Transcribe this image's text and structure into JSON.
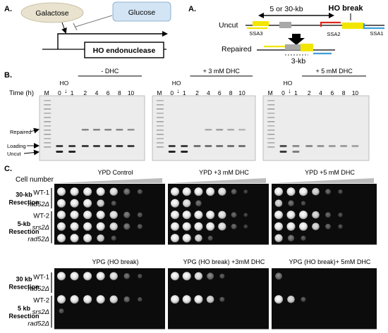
{
  "panel_a": {
    "letter": "A.",
    "galactose": "Galactose",
    "glucose": "Glucose",
    "gene": "HO endonuclease",
    "uncut": "Uncut",
    "distance": "5 or 30-kb",
    "ho_break": "HO break",
    "ssa3": "SSA3",
    "ssa2": "SSA2",
    "ssa1": "SSA1",
    "repaired": "Repaired",
    "repaired_size": "3-kb",
    "colors": {
      "yellow": "#f2e600",
      "red": "#e0241b",
      "blue": "#3e9fd8",
      "gray": "#a8a8a8",
      "galactose_fill": "#e8e2cf",
      "glucose_fill": "#d3e5f5"
    }
  },
  "panel_b": {
    "letter": "B.",
    "time_label": "Time (h)",
    "marker": "M",
    "ho": "HO",
    "arrow": "↓",
    "lanes": [
      "0",
      "1",
      "2",
      "4",
      "6",
      "8",
      "10"
    ],
    "groups": [
      {
        "title": "- DHC"
      },
      {
        "title": "+ 3 mM DHC"
      },
      {
        "title": "+ 5 mM DHC"
      }
    ],
    "band_labels": {
      "repaired": "Repaired",
      "loading": "Loading",
      "uncut": "Uncut"
    }
  },
  "panel_c": {
    "letter": "C.",
    "cell_number": "Cell number",
    "top": {
      "titles": [
        "YPD Control",
        "YPD +3 mM DHC",
        "YPD +5 mM DHC"
      ],
      "groups": [
        {
          "label": [
            "30-kb",
            "Resection"
          ],
          "rows": [
            "WT-1",
            "rad52Δ"
          ]
        },
        {
          "label": [
            "5-kb",
            "Resection"
          ],
          "rows": [
            "WT-2",
            "srs2Δ",
            "rad52Δ"
          ]
        }
      ]
    },
    "bottom": {
      "titles": [
        "YPG (HO break)",
        "YPG (HO break) +3mM DHC",
        "YPG (HO break)+ 5mM DHC"
      ],
      "groups": [
        {
          "label": [
            "30 kb",
            "Resection"
          ],
          "rows": [
            "WT-1",
            "rad52Δ"
          ]
        },
        {
          "label": [
            "5 kb",
            "Resection"
          ],
          "rows": [
            "WT-2",
            "srs2Δ",
            "rad52Δ"
          ]
        }
      ]
    }
  }
}
